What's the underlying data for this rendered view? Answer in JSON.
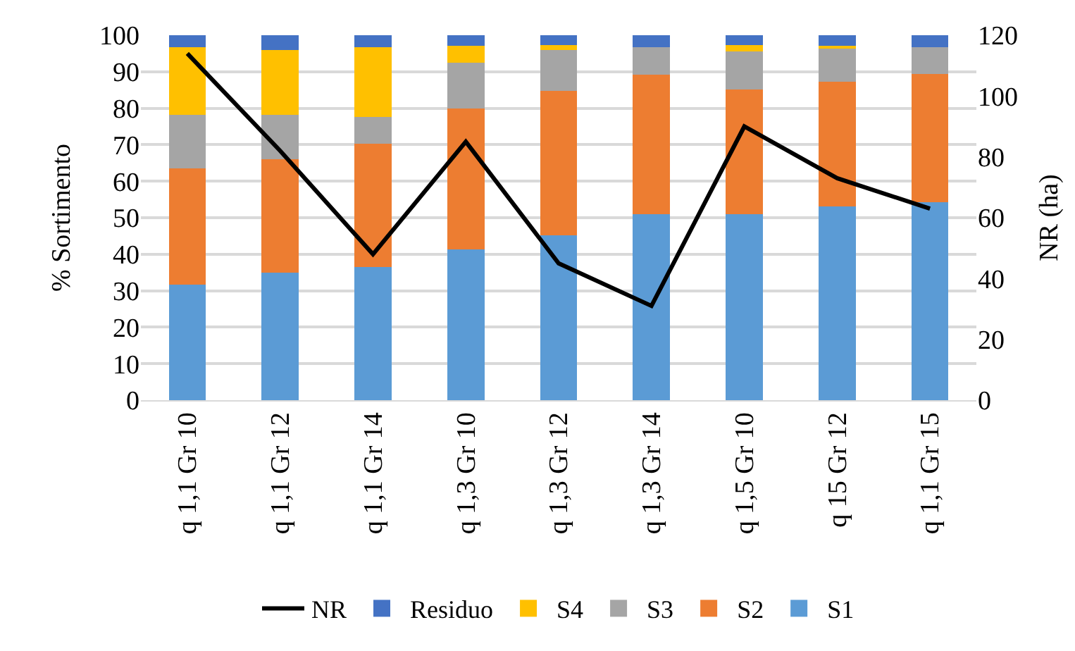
{
  "chart_data": {
    "type": "bar",
    "stacked": true,
    "ylabel": "% Sortimento",
    "y2label": "NR (ha)",
    "categories": [
      "q 1,1 Gr 10",
      "q 1,1 Gr 12",
      "q 1,1 Gr 14",
      "q 1,3 Gr 10",
      "q 1,3 Gr 12",
      "q 1,3 Gr 14",
      "q 1,5 Gr 10",
      "q 15 Gr 12",
      "q 1,1 Gr 15"
    ],
    "series": [
      {
        "name": "S1",
        "color": "#5b9bd5",
        "values": [
          31.7,
          35,
          36.5,
          41.3,
          45.2,
          50.9,
          50.9,
          53.1,
          54.3
        ]
      },
      {
        "name": "S2",
        "color": "#ed7d31",
        "values": [
          31.8,
          31,
          33.8,
          38.6,
          39.5,
          38.3,
          34.3,
          34.1,
          35
        ]
      },
      {
        "name": "S3",
        "color": "#a5a5a5",
        "values": [
          14.6,
          12.1,
          7.4,
          12.6,
          11.2,
          7.6,
          10.4,
          9.1,
          7.5
        ]
      },
      {
        "name": "S4",
        "color": "#ffc000",
        "values": [
          18.6,
          17.9,
          19,
          4.7,
          1.4,
          0,
          1.7,
          0.8,
          0
        ]
      },
      {
        "name": "Residuo",
        "color": "#4472c4",
        "values": [
          3.3,
          4,
          3.3,
          2.8,
          2.7,
          3.2,
          2.7,
          2.9,
          3.2
        ]
      },
      {
        "name": "NR",
        "type": "line",
        "axis": "y2",
        "color": "#000000",
        "values": [
          114,
          82,
          48,
          85,
          45,
          31,
          90,
          73,
          63
        ]
      }
    ],
    "ylim": [
      0,
      100
    ],
    "yticks": [
      0,
      10,
      20,
      30,
      40,
      50,
      60,
      70,
      80,
      90,
      100
    ],
    "y2lim": [
      0,
      120
    ],
    "y2ticks": [
      0,
      20,
      40,
      60,
      80,
      100,
      120
    ],
    "grid": "y",
    "legend": "bottom",
    "marker": "none",
    "line_style": "solid"
  }
}
